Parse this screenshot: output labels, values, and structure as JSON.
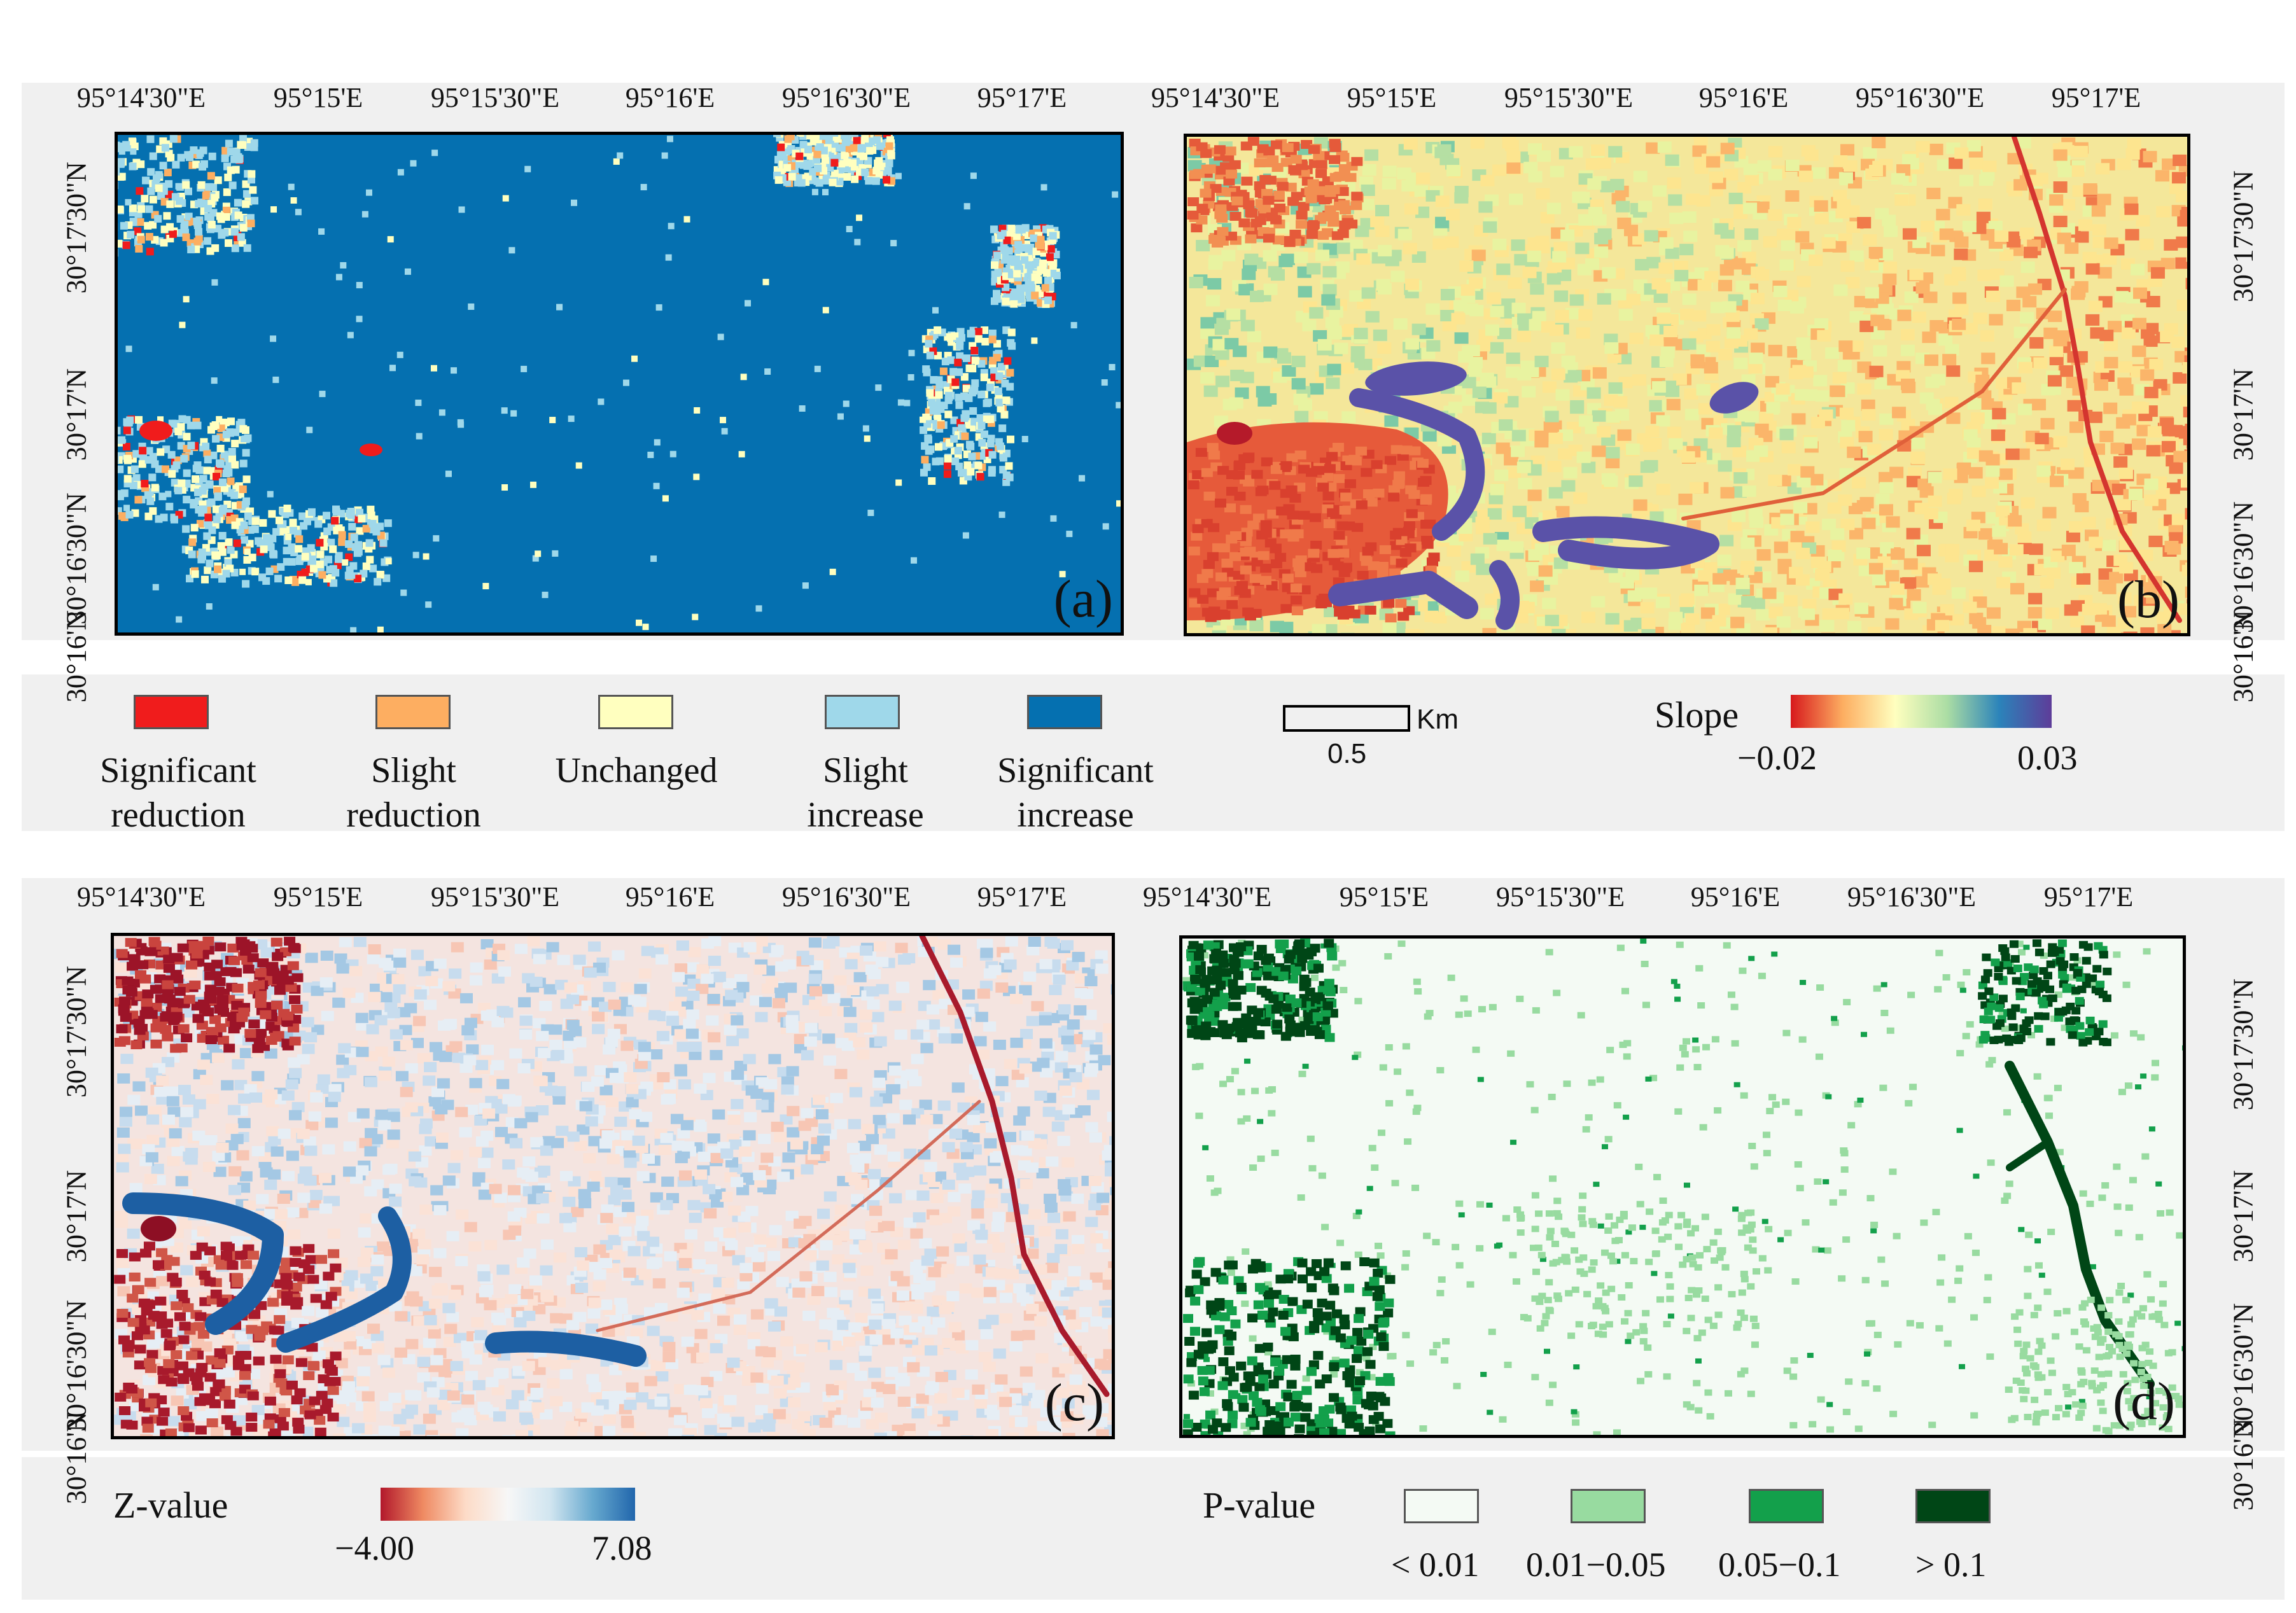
{
  "panels": [
    {
      "id": "a",
      "label": "(a)",
      "kind": "trend_class"
    },
    {
      "id": "b",
      "label": "(b)",
      "kind": "slope"
    },
    {
      "id": "c",
      "label": "(c)",
      "kind": "zvalue"
    },
    {
      "id": "d",
      "label": "(d)",
      "kind": "pvalue"
    }
  ],
  "longitude_ticks": [
    "95°14'30\"E",
    "95°15'E",
    "95°15'30\"E",
    "95°16'E",
    "95°16'30\"E",
    "95°17'E"
  ],
  "latitude_ticks": [
    "30°17'30\"N",
    "30°17'N",
    "30°16'30\"N",
    "30°16'N"
  ],
  "trend_legend": {
    "items": [
      {
        "line1": "Significant",
        "line2": "reduction",
        "color": "#f01c1c"
      },
      {
        "line1": "Slight",
        "line2": "reduction",
        "color": "#fdae61"
      },
      {
        "line1": "Unchanged",
        "line2": "",
        "color": "#ffffbf"
      },
      {
        "line1": "Slight",
        "line2": "increase",
        "color": "#9fd8ea"
      },
      {
        "line1": "Significant",
        "line2": "increase",
        "color": "#0570b0"
      }
    ]
  },
  "scale_bar": {
    "unit": "Km",
    "value": "0.5"
  },
  "slope_legend": {
    "title": "Slope",
    "min_label": "−0.02",
    "max_label": "0.03",
    "colors": [
      "#d7191c",
      "#fdae61",
      "#ffffbf",
      "#abdda4",
      "#2b83ba",
      "#5e3c99"
    ]
  },
  "z_legend": {
    "title": "Z-value",
    "min_label": "−4.00",
    "max_label": "7.08",
    "colors": [
      "#b2182b",
      "#ef8a62",
      "#fddbc7",
      "#f7f7f7",
      "#d1e5f0",
      "#67a9cf",
      "#2166ac"
    ]
  },
  "p_legend": {
    "title": "P-value",
    "items": [
      {
        "label": "< 0.01",
        "color": "#f4faf4"
      },
      {
        "label": "0.01−0.05",
        "color": "#98dba0"
      },
      {
        "label": "0.05−0.1",
        "color": "#13a04b"
      },
      {
        "label": "> 0.1",
        "color": "#004616"
      }
    ]
  }
}
